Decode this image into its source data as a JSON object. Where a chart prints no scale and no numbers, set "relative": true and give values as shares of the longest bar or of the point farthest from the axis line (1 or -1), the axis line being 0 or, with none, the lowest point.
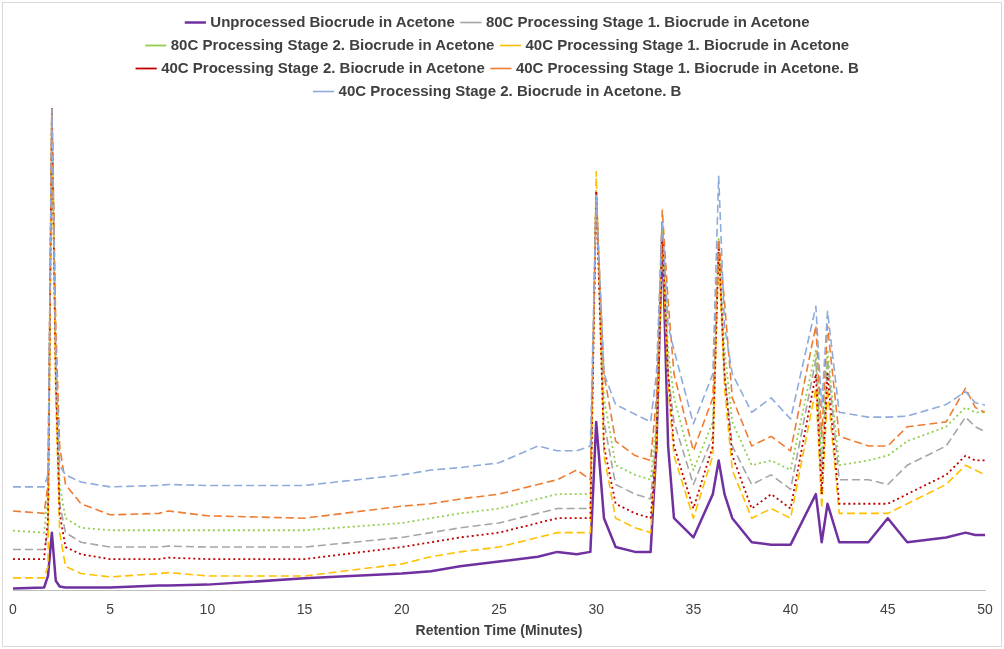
{
  "chart_data": {
    "type": "line",
    "xlabel": "Retention Time (Minutes)",
    "relative": true,
    "xlim": [
      0,
      50
    ],
    "xticks": [
      0,
      5,
      10,
      15,
      20,
      25,
      30,
      35,
      40,
      45,
      50
    ],
    "grid": false,
    "legend": "top",
    "marker": "none",
    "x": [
      0,
      1.6,
      1.8,
      2.0,
      2.2,
      2.4,
      2.7,
      3.5,
      5,
      7.5,
      8,
      10,
      15,
      20,
      21.5,
      23,
      25,
      27,
      28,
      29,
      29.7,
      30,
      30.4,
      31,
      32,
      32.8,
      33.1,
      33.4,
      33.7,
      34,
      35,
      36,
      36.3,
      36.6,
      37,
      38,
      39,
      40,
      41.3,
      41.6,
      41.9,
      42.5,
      44,
      45,
      46,
      48,
      49,
      49.5,
      50
    ],
    "series": [
      {
        "name": "Unprocessed Biocrude in Acetone",
        "color": "#7030a0",
        "line_style": "solid",
        "values": [
          0.004,
          0.006,
          0.03,
          0.12,
          0.02,
          0.008,
          0.006,
          0.006,
          0.006,
          0.01,
          0.01,
          0.012,
          0.025,
          0.035,
          0.04,
          0.05,
          0.06,
          0.07,
          0.08,
          0.075,
          0.08,
          0.35,
          0.15,
          0.09,
          0.08,
          0.08,
          0.3,
          0.75,
          0.3,
          0.15,
          0.11,
          0.2,
          0.27,
          0.2,
          0.15,
          0.1,
          0.095,
          0.095,
          0.2,
          0.1,
          0.18,
          0.1,
          0.1,
          0.15,
          0.1,
          0.11,
          0.12,
          0.115,
          0.115
        ]
      },
      {
        "name": "80C Processing Stage 1. Biocrude in Acetone",
        "color": "#a5a5a5",
        "line_style": "dashed",
        "values": [
          0.085,
          0.085,
          0.12,
          1.0,
          0.45,
          0.18,
          0.12,
          0.1,
          0.09,
          0.09,
          0.092,
          0.09,
          0.09,
          0.11,
          0.12,
          0.13,
          0.14,
          0.16,
          0.17,
          0.17,
          0.17,
          0.83,
          0.35,
          0.22,
          0.2,
          0.19,
          0.32,
          0.76,
          0.45,
          0.35,
          0.22,
          0.32,
          0.73,
          0.45,
          0.3,
          0.22,
          0.24,
          0.21,
          0.48,
          0.24,
          0.48,
          0.23,
          0.23,
          0.22,
          0.26,
          0.3,
          0.36,
          0.34,
          0.33
        ]
      },
      {
        "name": "80C Processing Stage 2. Biocrude in Acetone",
        "color": "#92d050",
        "line_style": "dotted",
        "values": [
          0.124,
          0.12,
          0.2,
          1.0,
          0.5,
          0.22,
          0.15,
          0.13,
          0.125,
          0.125,
          0.125,
          0.125,
          0.125,
          0.14,
          0.15,
          0.16,
          0.17,
          0.19,
          0.2,
          0.2,
          0.2,
          0.83,
          0.4,
          0.26,
          0.24,
          0.23,
          0.35,
          0.76,
          0.5,
          0.4,
          0.25,
          0.35,
          0.73,
          0.5,
          0.35,
          0.26,
          0.27,
          0.25,
          0.5,
          0.27,
          0.5,
          0.26,
          0.27,
          0.28,
          0.31,
          0.34,
          0.38,
          0.37,
          0.37
        ]
      },
      {
        "name": "40C Processing Stage 1. Biocrude in Acetone",
        "color": "#ffc000",
        "line_style": "dashed",
        "values": [
          0.026,
          0.026,
          0.05,
          1.0,
          0.4,
          0.12,
          0.05,
          0.035,
          0.028,
          0.035,
          0.037,
          0.03,
          0.03,
          0.055,
          0.07,
          0.08,
          0.09,
          0.11,
          0.12,
          0.12,
          0.12,
          0.87,
          0.28,
          0.15,
          0.13,
          0.12,
          0.3,
          0.73,
          0.42,
          0.28,
          0.15,
          0.28,
          0.7,
          0.42,
          0.25,
          0.15,
          0.17,
          0.15,
          0.42,
          0.17,
          0.42,
          0.16,
          0.16,
          0.16,
          0.18,
          0.22,
          0.26,
          0.25,
          0.24
        ]
      },
      {
        "name": "40C Processing Stage 2. Biocrude in Acetone",
        "color": "#c00000",
        "line_style": "dotted",
        "values": [
          0.065,
          0.065,
          0.15,
          1.0,
          0.45,
          0.16,
          0.09,
          0.075,
          0.065,
          0.065,
          0.068,
          0.065,
          0.065,
          0.09,
          0.1,
          0.11,
          0.12,
          0.14,
          0.15,
          0.15,
          0.15,
          0.83,
          0.3,
          0.18,
          0.16,
          0.15,
          0.3,
          0.74,
          0.45,
          0.3,
          0.17,
          0.3,
          0.72,
          0.45,
          0.28,
          0.17,
          0.2,
          0.17,
          0.45,
          0.2,
          0.45,
          0.18,
          0.18,
          0.18,
          0.2,
          0.24,
          0.28,
          0.27,
          0.27
        ]
      },
      {
        "name": "40C Processing Stage 1. Biocrude in Acetone. B",
        "color": "#ed7d31",
        "line_style": "dashed",
        "values": [
          0.165,
          0.16,
          0.22,
          1.0,
          0.55,
          0.3,
          0.22,
          0.18,
          0.157,
          0.16,
          0.165,
          0.155,
          0.15,
          0.175,
          0.18,
          0.19,
          0.2,
          0.22,
          0.23,
          0.25,
          0.23,
          0.82,
          0.45,
          0.31,
          0.28,
          0.27,
          0.4,
          0.79,
          0.6,
          0.45,
          0.29,
          0.4,
          0.73,
          0.6,
          0.4,
          0.3,
          0.32,
          0.29,
          0.55,
          0.32,
          0.55,
          0.32,
          0.3,
          0.3,
          0.34,
          0.35,
          0.42,
          0.38,
          0.37
        ]
      },
      {
        "name": "40C Processing Stage 2. Biocrude in Acetone. B",
        "color": "#8faadc",
        "line_style": "dashed",
        "values": [
          0.215,
          0.215,
          0.24,
          1.0,
          0.5,
          0.26,
          0.24,
          0.225,
          0.215,
          0.218,
          0.22,
          0.218,
          0.218,
          0.24,
          0.25,
          0.255,
          0.265,
          0.3,
          0.29,
          0.29,
          0.3,
          0.82,
          0.45,
          0.386,
          0.366,
          0.35,
          0.45,
          0.77,
          0.55,
          0.5,
          0.346,
          0.45,
          0.86,
          0.55,
          0.45,
          0.37,
          0.4,
          0.356,
          0.59,
          0.38,
          0.58,
          0.37,
          0.36,
          0.36,
          0.362,
          0.386,
          0.413,
          0.39,
          0.385
        ]
      }
    ]
  }
}
